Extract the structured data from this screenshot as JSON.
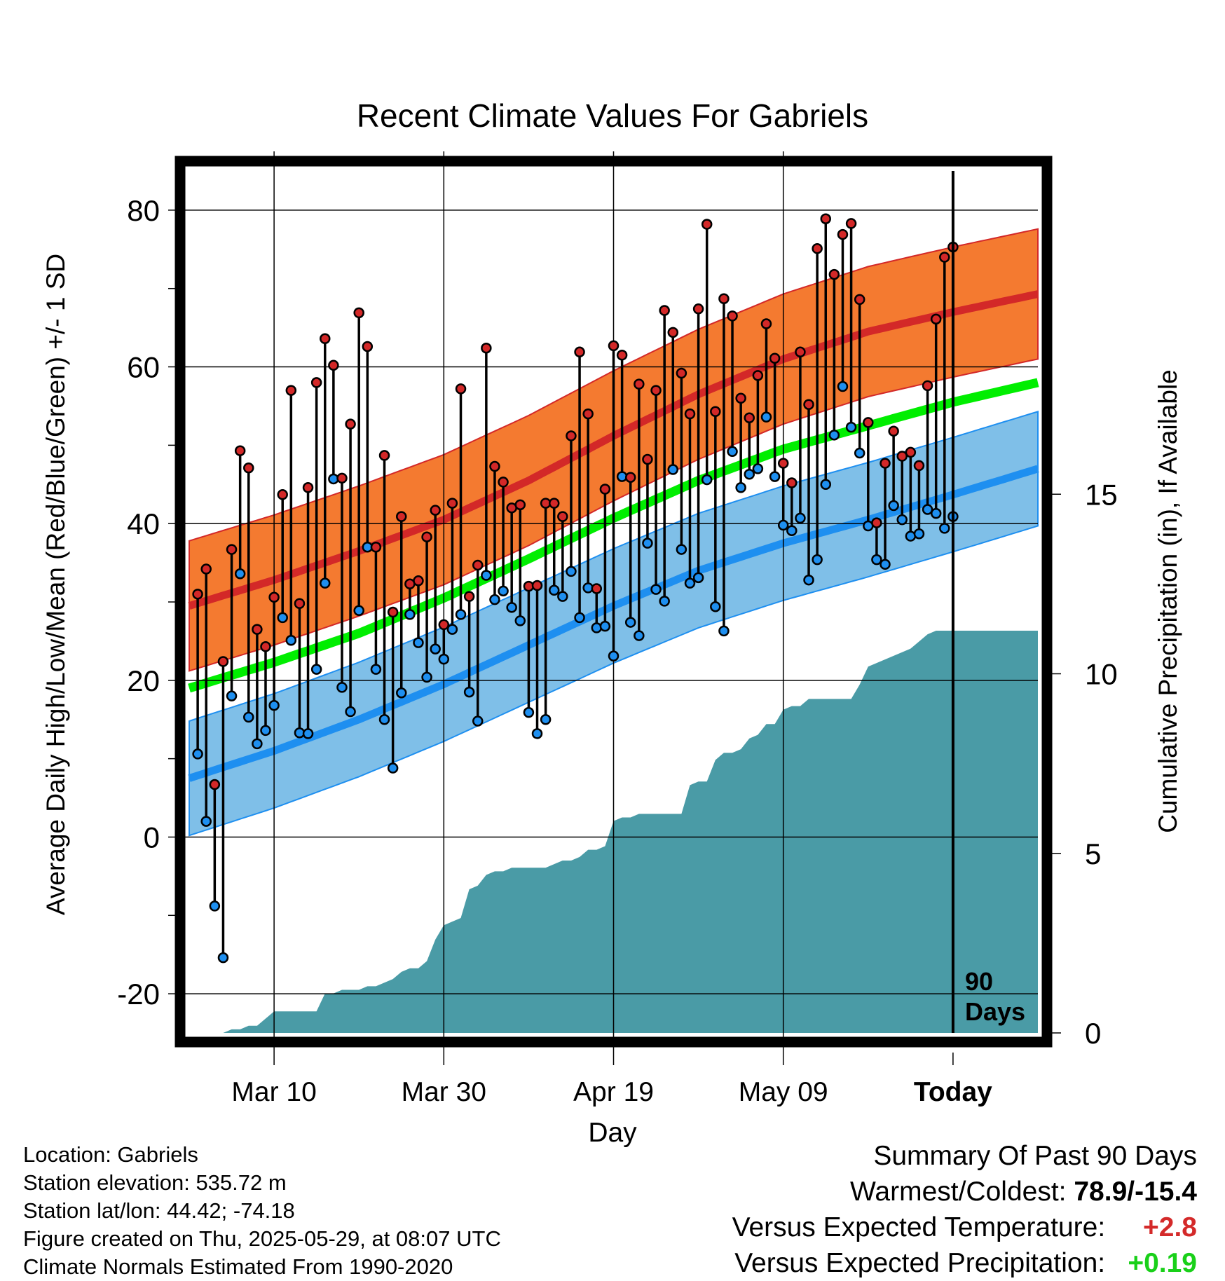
{
  "chart_data": {
    "type": "line",
    "title": "Recent Climate Values For Gabriels",
    "xlabel": "Day",
    "ylabel": "Average Daily High/Low/Mean (Red/Blue/Green) +/- 1 SD",
    "y2label": "Cumulative Precipitation (in), If Available",
    "x_tick_labels": [
      "Mar 10",
      "Mar 30",
      "Apr 19",
      "May 09",
      "Today"
    ],
    "x_tick_days": [
      10,
      30,
      50,
      70,
      90
    ],
    "xlim": [
      0,
      100
    ],
    "ylim": [
      -25,
      85
    ],
    "y_ticks": [
      -20,
      0,
      20,
      40,
      60,
      80
    ],
    "y2lim": [
      0,
      24
    ],
    "y2_ticks": [
      0,
      5,
      10,
      15
    ],
    "today_marker": {
      "day": 90,
      "label_line1": "90",
      "label_line2": "Days"
    },
    "grid": true,
    "colors": {
      "high_band": "#f47a30",
      "high_line": "#d32828",
      "low_band": "#7fbfe8",
      "low_line": "#1e8ff0",
      "mean_line": "#00ee00",
      "precip": "#4a9ba6"
    },
    "normals": {
      "days": [
        0,
        10,
        20,
        30,
        40,
        50,
        60,
        70,
        80,
        90,
        100
      ],
      "high": [
        29.5,
        32.8,
        36.5,
        40.5,
        45.5,
        51.2,
        56.5,
        61.0,
        64.5,
        67.0,
        69.3
      ],
      "high_sd": 8.3,
      "low": [
        7.5,
        11.0,
        15.0,
        19.5,
        24.5,
        29.5,
        34.0,
        37.5,
        40.5,
        43.7,
        47.0
      ],
      "low_sd": 7.3,
      "mean": [
        19.0,
        22.3,
        26.0,
        30.5,
        35.5,
        40.7,
        45.5,
        49.5,
        52.5,
        55.5,
        58.0
      ]
    },
    "daily_high": [
      31,
      34.2,
      6.7,
      22.4,
      36.7,
      49.3,
      47.1,
      26.5,
      24.3,
      30.6,
      43.7,
      57.0,
      29.8,
      44.6,
      58.0,
      63.6,
      60.2,
      45.8,
      52.7,
      66.9,
      62.6,
      37.0,
      48.7,
      28.7,
      40.9,
      32.3,
      32.7,
      38.3,
      41.7,
      27.1,
      42.6,
      57.2,
      30.7,
      34.7,
      62.4,
      47.3,
      45.3,
      42.0,
      42.4,
      32.0,
      32.1,
      42.6,
      42.6,
      40.9,
      51.2,
      61.9,
      54.0,
      31.7,
      44.4,
      62.7,
      61.5,
      45.9,
      57.8,
      48.2,
      57.0,
      67.2,
      64.4,
      59.2,
      54.0,
      67.4,
      78.2,
      54.3,
      68.7,
      66.5,
      56.0,
      53.5,
      58.9,
      65.5,
      61.1,
      47.7,
      45.2,
      61.9,
      55.2,
      75.1,
      78.9,
      71.8,
      76.9,
      78.3,
      68.6,
      52.9,
      40.1,
      47.7,
      51.8,
      48.6,
      49.1,
      47.4,
      57.6,
      66.1,
      74.0,
      75.3
    ],
    "daily_low": [
      10.6,
      2.0,
      -8.8,
      -15.4,
      18.0,
      33.6,
      15.3,
      11.9,
      13.6,
      16.8,
      28.0,
      25.1,
      13.3,
      13.2,
      21.4,
      32.4,
      45.7,
      19.1,
      16.0,
      28.9,
      37.0,
      21.4,
      15.0,
      8.8,
      18.4,
      28.4,
      24.8,
      20.4,
      24.0,
      22.7,
      26.5,
      28.4,
      18.5,
      14.8,
      33.4,
      30.3,
      31.4,
      29.3,
      27.6,
      15.9,
      13.2,
      15.0,
      31.5,
      30.7,
      33.9,
      28.0,
      31.8,
      26.7,
      26.9,
      23.1,
      46.0,
      27.4,
      25.7,
      37.5,
      31.6,
      30.1,
      46.9,
      36.7,
      32.4,
      33.1,
      45.6,
      29.4,
      26.3,
      49.2,
      44.6,
      46.3,
      47.0,
      53.6,
      46.0,
      39.8,
      39.1,
      40.7,
      32.8,
      35.4,
      45.0,
      51.3,
      57.5,
      52.3,
      49.0,
      39.7,
      35.4,
      34.8,
      42.3,
      40.5,
      38.4,
      38.7,
      41.8,
      41.3,
      39.4,
      40.9
    ],
    "precip_cumulative": [
      0.0,
      0.0,
      0.0,
      0.0,
      0.0,
      0.1,
      0.1,
      0.2,
      0.2,
      0.4,
      0.6,
      0.6,
      0.6,
      0.6,
      0.6,
      0.6,
      1.1,
      1.1,
      1.2,
      1.2,
      1.2,
      1.3,
      1.3,
      1.4,
      1.5,
      1.7,
      1.8,
      1.8,
      2.0,
      2.6,
      3.0,
      3.1,
      3.2,
      4.0,
      4.1,
      4.4,
      4.5,
      4.5,
      4.6,
      4.6,
      4.6,
      4.6,
      4.6,
      4.7,
      4.8,
      4.8,
      4.9,
      5.1,
      5.1,
      5.2,
      5.9,
      6.0,
      6.0,
      6.1,
      6.1,
      6.1,
      6.1,
      6.1,
      6.1,
      6.9,
      7.0,
      7.0,
      7.6,
      7.8,
      7.8,
      7.9,
      8.2,
      8.3,
      8.6,
      8.6,
      9.0,
      9.1,
      9.1,
      9.3,
      9.3,
      9.3,
      9.3,
      9.3,
      9.3,
      9.7,
      10.2,
      10.3,
      10.4,
      10.5,
      10.6,
      10.7,
      10.9,
      11.1,
      11.2,
      11.2,
      11.2,
      11.2,
      11.2,
      11.2,
      11.2,
      11.2,
      11.2,
      11.2,
      11.2,
      11.2,
      11.2
    ],
    "precip_day0": 5
  },
  "meta": {
    "location": "Location: Gabriels",
    "elevation": "Station elevation: 535.72 m",
    "latlon": "Station lat/lon: 44.42; -74.18",
    "created": "Figure created on Thu, 2025-05-29, at 08:07 UTC",
    "normals": "Climate Normals Estimated From 1990-2020"
  },
  "summary": {
    "title": "Summary Of Past 90 Days",
    "warmest_label": "Warmest/Coldest:",
    "warmest_value": "78.9/-15.4",
    "temp_label": "Versus Expected Temperature:",
    "temp_value": "+2.8",
    "precip_label": "Versus Expected Precipitation:",
    "precip_value": "+0.19"
  }
}
